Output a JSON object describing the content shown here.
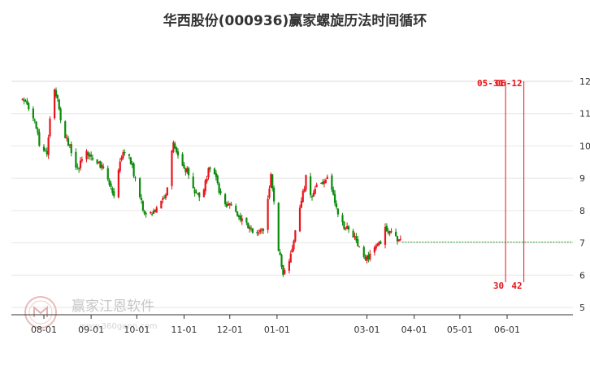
{
  "chart_data": {
    "type": "candlestick",
    "title": "华西股份(000936)赢家螺旋历法时间循环",
    "y_ticks": [
      "12",
      "11",
      "10",
      "9",
      "8",
      "7",
      "6",
      "5"
    ],
    "ylim": [
      5,
      12
    ],
    "x_ticks": [
      "08-01",
      "09-01",
      "10-01",
      "11-01",
      "12-01",
      "01-01",
      "03-01",
      "04-01",
      "05-01",
      "06-01"
    ],
    "x_tick_days": [
      0,
      31,
      61,
      92,
      122,
      153,
      212,
      243,
      273,
      304
    ],
    "grid": true,
    "up_color": "#e8141a",
    "down_color": "#0a8a0a",
    "marker_color": "#e8141a",
    "last_close": 7.02,
    "price_path": [
      [
        -14,
        11.45
      ],
      [
        -7,
        10.95
      ],
      [
        -2,
        9.9
      ],
      [
        2,
        9.75
      ],
      [
        6,
        11.9
      ],
      [
        10,
        11.2
      ],
      [
        12,
        10.4
      ],
      [
        16,
        10.1
      ],
      [
        22,
        9.3
      ],
      [
        28,
        9.75
      ],
      [
        36,
        9.5
      ],
      [
        40,
        9.2
      ],
      [
        46,
        8.5
      ],
      [
        52,
        9.9
      ],
      [
        56,
        9.7
      ],
      [
        63,
        8.45
      ],
      [
        66,
        7.9
      ],
      [
        72,
        8.0
      ],
      [
        80,
        8.4
      ],
      [
        85,
        10.1
      ],
      [
        89,
        9.6
      ],
      [
        94,
        9.2
      ],
      [
        100,
        8.5
      ],
      [
        104,
        8.4
      ],
      [
        108,
        9.25
      ],
      [
        112,
        9.1
      ],
      [
        118,
        8.2
      ],
      [
        122,
        8.15
      ],
      [
        128,
        7.8
      ],
      [
        134,
        7.5
      ],
      [
        140,
        7.25
      ],
      [
        145,
        7.5
      ],
      [
        149,
        9.2
      ],
      [
        154,
        6.8
      ],
      [
        157,
        6.1
      ],
      [
        160,
        6.3
      ],
      [
        164,
        7.1
      ],
      [
        168,
        8.1
      ],
      [
        172,
        9.0
      ],
      [
        176,
        8.4
      ],
      [
        180,
        8.85
      ],
      [
        186,
        9.0
      ],
      [
        190,
        8.45
      ],
      [
        194,
        7.6
      ],
      [
        200,
        7.4
      ],
      [
        206,
        7.0
      ],
      [
        210,
        6.5
      ],
      [
        216,
        6.7
      ],
      [
        220,
        6.95
      ],
      [
        224,
        7.45
      ],
      [
        228,
        7.3
      ],
      [
        232,
        7.05
      ],
      [
        234,
        7.02
      ]
    ],
    "markers": [
      {
        "date_label": "05-31",
        "count": "30",
        "day": 303
      },
      {
        "date_label": "06-12",
        "count": "42",
        "day": 315
      }
    ]
  },
  "watermark": {
    "name": "赢家江恩软件",
    "url": "www.360gann.com"
  }
}
